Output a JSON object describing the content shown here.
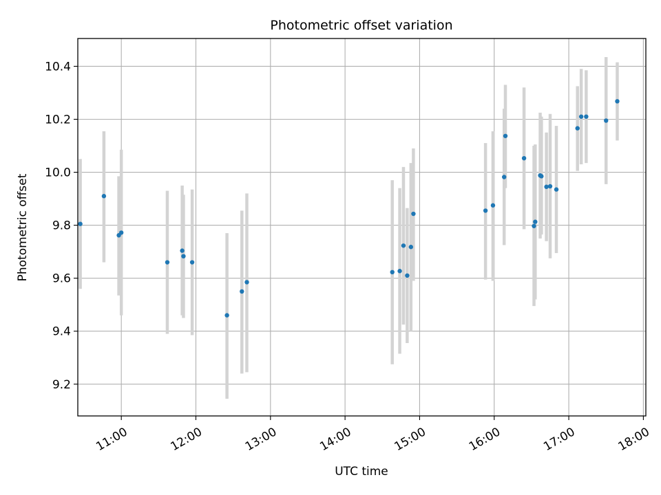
{
  "chart_data": {
    "type": "scatter",
    "title": "Photometric offset variation",
    "xlabel": "UTC time",
    "ylabel": "Photometric offset",
    "x_unit": "hours UTC",
    "xlim": [
      "10:25",
      "18:02"
    ],
    "ylim": [
      9.08,
      10.505
    ],
    "x_ticks": [
      "11:00",
      "12:00",
      "13:00",
      "14:00",
      "15:00",
      "16:00",
      "17:00",
      "18:00"
    ],
    "y_ticks": [
      "9.2",
      "9.4",
      "9.6",
      "9.8",
      "10.0",
      "10.2",
      "10.4"
    ],
    "grid": true,
    "marker_color": "#1f77b4",
    "errorbar_color": "#d3d3d3",
    "points": [
      {
        "x": "10:27",
        "y": 9.805,
        "ylow": 9.56,
        "yhigh": 10.05
      },
      {
        "x": "10:46",
        "y": 9.91,
        "ylow": 9.66,
        "yhigh": 10.155
      },
      {
        "x": "10:58",
        "y": 9.762,
        "ylow": 9.535,
        "yhigh": 9.985
      },
      {
        "x": "11:00",
        "y": 9.772,
        "ylow": 9.46,
        "yhigh": 10.085
      },
      {
        "x": "11:37",
        "y": 9.66,
        "ylow": 9.39,
        "yhigh": 9.93
      },
      {
        "x": "11:49",
        "y": 9.704,
        "ylow": 9.46,
        "yhigh": 9.95
      },
      {
        "x": "11:50",
        "y": 9.683,
        "ylow": 9.45,
        "yhigh": 9.915
      },
      {
        "x": "11:57",
        "y": 9.66,
        "ylow": 9.385,
        "yhigh": 9.935
      },
      {
        "x": "12:25",
        "y": 9.46,
        "ylow": 9.145,
        "yhigh": 9.77
      },
      {
        "x": "12:37",
        "y": 9.55,
        "ylow": 9.24,
        "yhigh": 9.855
      },
      {
        "x": "12:41",
        "y": 9.585,
        "ylow": 9.245,
        "yhigh": 9.92
      },
      {
        "x": "14:38",
        "y": 9.623,
        "ylow": 9.275,
        "yhigh": 9.97
      },
      {
        "x": "14:44",
        "y": 9.627,
        "ylow": 9.315,
        "yhigh": 9.94
      },
      {
        "x": "14:47",
        "y": 9.723,
        "ylow": 9.425,
        "yhigh": 10.02
      },
      {
        "x": "14:50",
        "y": 9.61,
        "ylow": 9.355,
        "yhigh": 9.865
      },
      {
        "x": "14:53",
        "y": 9.718,
        "ylow": 9.4,
        "yhigh": 10.035
      },
      {
        "x": "14:55",
        "y": 9.843,
        "ylow": 9.59,
        "yhigh": 10.09
      },
      {
        "x": "15:53",
        "y": 9.855,
        "ylow": 9.595,
        "yhigh": 10.11
      },
      {
        "x": "15:59",
        "y": 9.875,
        "ylow": 9.59,
        "yhigh": 10.155
      },
      {
        "x": "16:08",
        "y": 9.982,
        "ylow": 9.725,
        "yhigh": 10.24
      },
      {
        "x": "16:09",
        "y": 10.137,
        "ylow": 9.94,
        "yhigh": 10.33
      },
      {
        "x": "16:24",
        "y": 10.053,
        "ylow": 9.785,
        "yhigh": 10.32
      },
      {
        "x": "16:32",
        "y": 9.797,
        "ylow": 9.495,
        "yhigh": 10.1
      },
      {
        "x": "16:33",
        "y": 9.813,
        "ylow": 9.52,
        "yhigh": 10.105
      },
      {
        "x": "16:37",
        "y": 9.988,
        "ylow": 9.75,
        "yhigh": 10.225
      },
      {
        "x": "16:38",
        "y": 9.985,
        "ylow": 9.765,
        "yhigh": 10.21
      },
      {
        "x": "16:42",
        "y": 9.945,
        "ylow": 9.74,
        "yhigh": 10.15
      },
      {
        "x": "16:45",
        "y": 9.947,
        "ylow": 9.675,
        "yhigh": 10.22
      },
      {
        "x": "16:50",
        "y": 9.935,
        "ylow": 9.695,
        "yhigh": 10.175
      },
      {
        "x": "17:07",
        "y": 10.166,
        "ylow": 10.005,
        "yhigh": 10.325
      },
      {
        "x": "17:10",
        "y": 10.21,
        "ylow": 10.03,
        "yhigh": 10.39
      },
      {
        "x": "17:14",
        "y": 10.21,
        "ylow": 10.035,
        "yhigh": 10.385
      },
      {
        "x": "17:30",
        "y": 10.195,
        "ylow": 9.955,
        "yhigh": 10.435
      },
      {
        "x": "17:39",
        "y": 10.268,
        "ylow": 10.12,
        "yhigh": 10.415
      }
    ]
  }
}
